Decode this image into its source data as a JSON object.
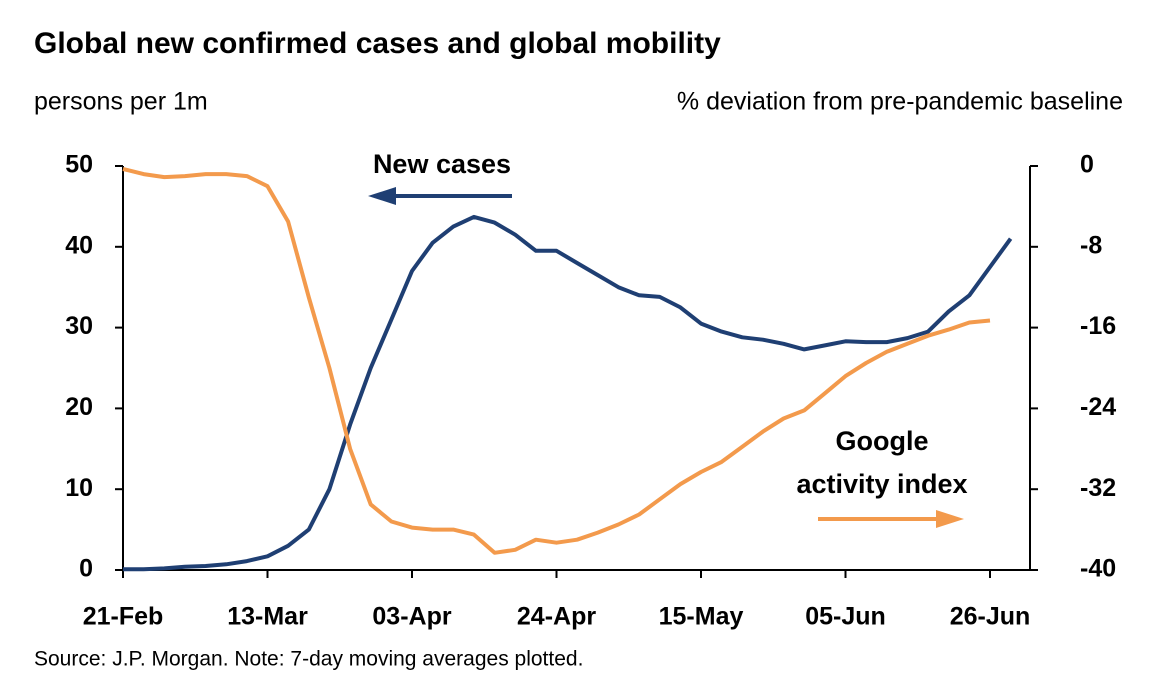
{
  "chart_data": {
    "type": "line",
    "title": "Global new confirmed cases and global mobility",
    "y_label": "persons per 1m",
    "y2_label": "% deviation from pre-pandemic baseline",
    "x": [
      "21-Feb",
      "24-Feb",
      "27-Feb",
      "01-Mar",
      "04-Mar",
      "07-Mar",
      "10-Mar",
      "13-Mar",
      "16-Mar",
      "19-Mar",
      "22-Mar",
      "25-Mar",
      "28-Mar",
      "31-Mar",
      "03-Apr",
      "06-Apr",
      "09-Apr",
      "12-Apr",
      "15-Apr",
      "18-Apr",
      "21-Apr",
      "24-Apr",
      "27-Apr",
      "30-Apr",
      "03-May",
      "06-May",
      "09-May",
      "12-May",
      "15-May",
      "18-May",
      "21-May",
      "24-May",
      "27-May",
      "30-May",
      "02-Jun",
      "05-Jun",
      "08-Jun",
      "11-Jun",
      "14-Jun",
      "17-Jun",
      "20-Jun",
      "23-Jun",
      "26-Jun",
      "29-Jun"
    ],
    "xticks": [
      "21-Feb",
      "13-Mar",
      "03-Apr",
      "24-Apr",
      "15-May",
      "05-Jun",
      "26-Jun"
    ],
    "series": [
      {
        "name": "New cases",
        "color": "#1f3f73",
        "axis": "y",
        "values": [
          0.1,
          0.1,
          0.2,
          0.4,
          0.5,
          0.7,
          1.1,
          1.7,
          3.0,
          5.0,
          10,
          18,
          25,
          31,
          37,
          40.5,
          42.5,
          43.7,
          43.0,
          41.5,
          39.5,
          39.5,
          38,
          36.5,
          35,
          34,
          33.8,
          32.5,
          30.5,
          29.5,
          28.8,
          28.5,
          28,
          27.3,
          27.8,
          28.3,
          28.2,
          28.2,
          28.7,
          29.5,
          32,
          34,
          37.5,
          41
        ]
      },
      {
        "name": "Google activity index",
        "color": "#f39a4c",
        "axis": "y2",
        "values": [
          -0.3,
          -0.8,
          -1.1,
          -1.0,
          -0.8,
          -0.8,
          -1.0,
          -2.0,
          -5.5,
          -13,
          -20,
          -28,
          -33.5,
          -35.2,
          -35.8,
          -36,
          -36,
          -36.5,
          -38.3,
          -38,
          -37,
          -37.3,
          -37,
          -36.3,
          -35.5,
          -34.5,
          -33,
          -31.5,
          -30.3,
          -29.3,
          -27.8,
          -26.3,
          -25,
          -24.2,
          -22.5,
          -20.8,
          -19.5,
          -18.4,
          -17.6,
          -16.8,
          -16.2,
          -15.5,
          -15.3,
          null
        ]
      }
    ],
    "annotations": [
      {
        "lines": [
          "New cases"
        ]
      },
      {
        "lines": [
          "Google",
          "activity index"
        ]
      }
    ],
    "ylim": [
      0,
      50
    ],
    "yticks": [
      0,
      10,
      20,
      30,
      40,
      50
    ],
    "y2lim": [
      -40,
      0
    ],
    "y2ticks": [
      0,
      -8,
      -16,
      -24,
      -32,
      -40
    ],
    "source": "Source: J.P. Morgan.  Note: 7-day moving averages plotted."
  }
}
